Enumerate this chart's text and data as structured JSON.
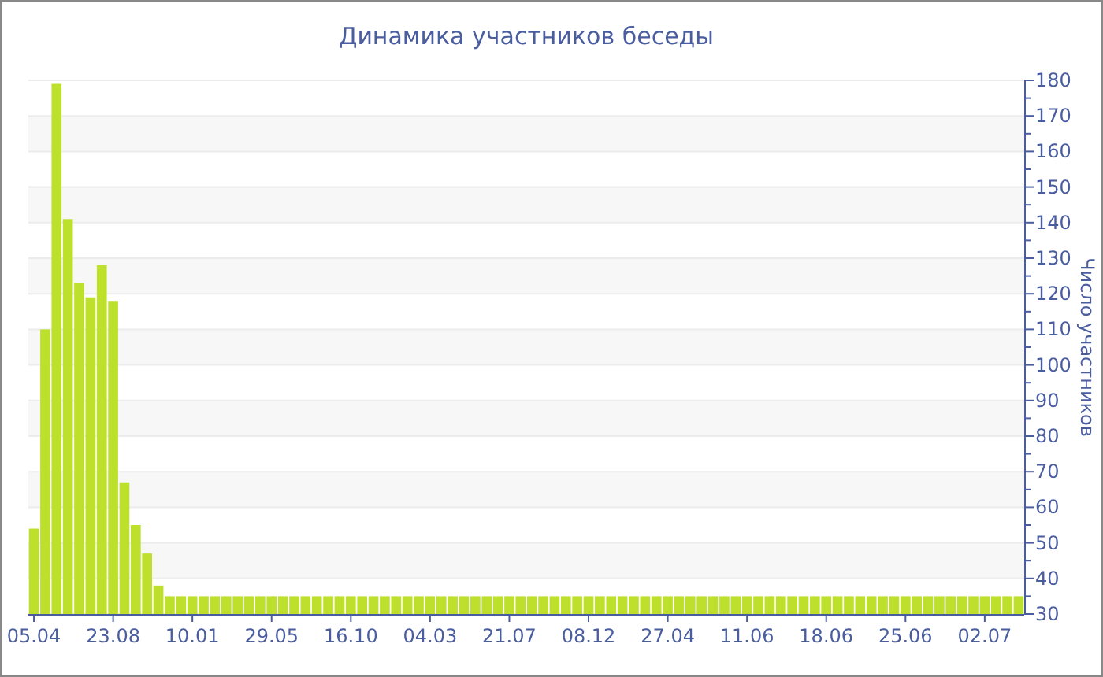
{
  "chart_data": {
    "type": "bar",
    "title": "Динамика участников беседы",
    "ylabel": "Число участников",
    "categories": [
      "05.04",
      null,
      null,
      null,
      null,
      null,
      null,
      "23.08",
      null,
      null,
      null,
      null,
      null,
      null,
      "10.01",
      null,
      null,
      null,
      null,
      null,
      null,
      "29.05",
      null,
      null,
      null,
      null,
      null,
      null,
      "16.10",
      null,
      null,
      null,
      null,
      null,
      null,
      "04.03",
      null,
      null,
      null,
      null,
      null,
      null,
      "21.07",
      null,
      null,
      null,
      null,
      null,
      null,
      "08.12",
      null,
      null,
      null,
      null,
      null,
      null,
      "27.04",
      null,
      null,
      null,
      null,
      null,
      null,
      "11.06",
      null,
      null,
      null,
      null,
      null,
      null,
      "18.06",
      null,
      null,
      null,
      null,
      null,
      null,
      "25.06",
      null,
      null,
      null,
      null,
      null,
      null,
      "02.07",
      null,
      null,
      null
    ],
    "values": [
      54,
      110,
      179,
      141,
      123,
      119,
      128,
      118,
      67,
      55,
      47,
      38,
      35,
      35,
      35,
      35,
      35,
      35,
      35,
      35,
      35,
      35,
      35,
      35,
      35,
      35,
      35,
      35,
      35,
      35,
      35,
      35,
      35,
      35,
      35,
      35,
      35,
      35,
      35,
      35,
      35,
      35,
      35,
      35,
      35,
      35,
      35,
      35,
      35,
      35,
      35,
      35,
      35,
      35,
      35,
      35,
      35,
      35,
      35,
      35,
      35,
      35,
      35,
      35,
      35,
      35,
      35,
      35,
      35,
      35,
      35,
      35,
      35,
      35,
      35,
      35,
      35,
      35,
      35,
      35,
      35,
      35,
      35,
      35,
      35,
      35,
      35,
      35
    ],
    "color": "#bde02c",
    "ylim": [
      30,
      180
    ],
    "yticks": [
      30,
      {
        "value": 35,
        "label": null
      },
      40,
      {
        "value": 45,
        "label": null
      },
      50,
      {
        "value": 55,
        "label": null
      },
      60,
      {
        "value": 65,
        "label": null
      },
      70,
      {
        "value": 75,
        "label": null
      },
      80,
      {
        "value": 85,
        "label": null
      },
      90,
      {
        "value": 95,
        "label": null
      },
      100,
      {
        "value": 105,
        "label": null
      },
      110,
      {
        "value": 115,
        "label": null
      },
      120,
      {
        "value": 125,
        "label": null
      },
      130,
      {
        "value": 135,
        "label": null
      },
      140,
      {
        "value": 145,
        "label": null
      },
      150,
      {
        "value": 155,
        "label": null
      },
      160,
      {
        "value": 165,
        "label": null
      },
      170,
      {
        "value": 175,
        "label": null
      },
      180
    ],
    "grid": "y"
  }
}
